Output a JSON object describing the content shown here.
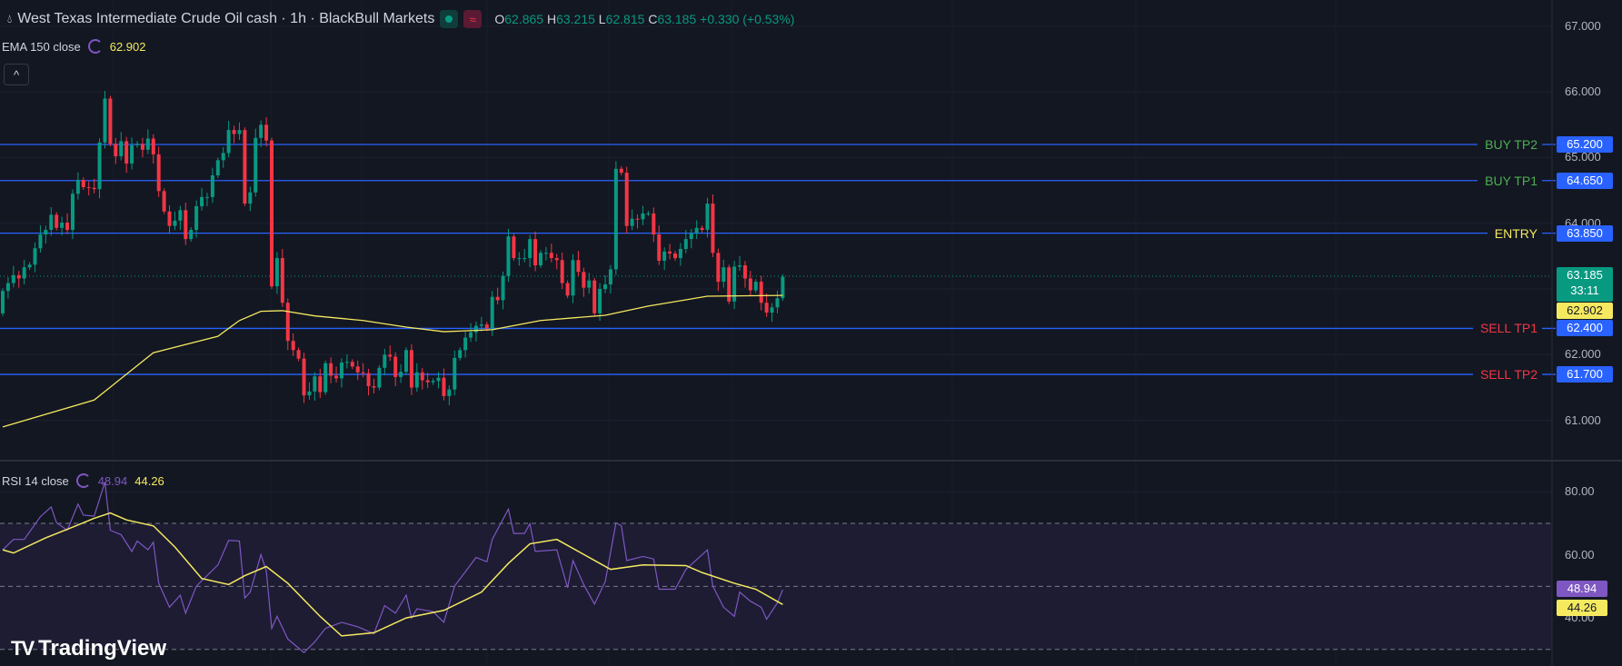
{
  "header": {
    "symbol_title": "West Texas Intermediate Crude Oil cash · 1h · BlackBull Markets",
    "icon": "droplet-icon",
    "ohlc": {
      "o_label": "O",
      "o": "62.865",
      "h_label": "H",
      "h": "63.215",
      "l_label": "L",
      "l": "62.815",
      "c_label": "C",
      "c": "63.185",
      "change": "+0.330 (+0.53%)"
    }
  },
  "ema_legend": {
    "label": "EMA 150 close",
    "value": "62.902"
  },
  "rsi_legend": {
    "label": "RSI 14 close",
    "value": "48.94",
    "ma_value": "44.26"
  },
  "branding": {
    "logo_text": "TradingView"
  },
  "colors": {
    "background": "#131722",
    "up": "#089981",
    "down": "#f23645",
    "ema": "#f5e960",
    "rsi": "#7e57c2",
    "rsi_ma": "#f5e960",
    "level_line": "#2962ff",
    "buy": "#4caf50",
    "sell": "#f23645",
    "entry": "#f5e960"
  },
  "chart_data": [
    {
      "type": "candlestick",
      "timeframe": "1h",
      "ylim": [
        60.6,
        67.3
      ],
      "y_ticks": [
        "67.000",
        "66.000",
        "65.000",
        "64.000",
        "62.000",
        "61.000"
      ],
      "first_open": 62.63,
      "closes": [
        62.97,
        63.09,
        63.21,
        63.16,
        63.33,
        63.37,
        63.62,
        63.83,
        63.9,
        64.13,
        63.93,
        64.01,
        63.9,
        64.45,
        64.66,
        64.55,
        64.54,
        64.52,
        65.23,
        65.9,
        65.21,
        65.02,
        65.25,
        64.91,
        65.19,
        65.21,
        65.12,
        65.29,
        65.05,
        64.49,
        64.18,
        63.96,
        64.04,
        64.2,
        63.76,
        63.9,
        64.26,
        64.4,
        64.4,
        64.73,
        64.96,
        65.07,
        65.42,
        65.36,
        65.42,
        64.3,
        64.47,
        65.3,
        65.5,
        65.26,
        63.04,
        63.47,
        62.79,
        62.21,
        62.07,
        61.94,
        61.38,
        61.44,
        61.67,
        61.43,
        61.87,
        61.68,
        61.64,
        61.88,
        61.89,
        61.82,
        61.73,
        61.72,
        61.52,
        61.5,
        61.8,
        62.0,
        61.97,
        61.66,
        61.74,
        62.07,
        61.5,
        61.73,
        61.61,
        61.58,
        61.6,
        61.65,
        61.37,
        61.47,
        61.95,
        62.07,
        62.26,
        62.34,
        62.44,
        62.46,
        62.4,
        62.88,
        62.83,
        63.2,
        63.8,
        63.47,
        63.47,
        63.47,
        63.76,
        63.36,
        63.55,
        63.55,
        63.47,
        63.44,
        63.09,
        62.9,
        63.44,
        63.26,
        63.02,
        63.13,
        62.63,
        63.0,
        63.07,
        63.3,
        64.83,
        64.77,
        63.96,
        64.07,
        64.06,
        64.15,
        64.15,
        63.83,
        63.43,
        63.57,
        63.54,
        63.47,
        63.61,
        63.76,
        63.85,
        63.93,
        63.9,
        64.3,
        63.55,
        63.11,
        63.33,
        62.81,
        63.34,
        63.36,
        63.16,
        62.98,
        63.11,
        62.79,
        62.64,
        62.72,
        62.86,
        63.185
      ],
      "ema150": [
        [
          0,
          60.9
        ],
        [
          17,
          61.31
        ],
        [
          28,
          62.03
        ],
        [
          40,
          62.28
        ],
        [
          44,
          62.52
        ],
        [
          48,
          62.66
        ],
        [
          52,
          62.67
        ],
        [
          58,
          62.59
        ],
        [
          67,
          62.52
        ],
        [
          75,
          62.42
        ],
        [
          82,
          62.35
        ],
        [
          91,
          62.38
        ],
        [
          100,
          62.52
        ],
        [
          112,
          62.6
        ],
        [
          120,
          62.74
        ],
        [
          131,
          62.89
        ],
        [
          145,
          62.902
        ]
      ],
      "levels": [
        {
          "label": "BUY TP2",
          "price": "65.200",
          "kind": "buy"
        },
        {
          "label": "BUY TP1",
          "price": "64.650",
          "kind": "buy"
        },
        {
          "label": "ENTRY",
          "price": "63.850",
          "kind": "entry"
        },
        {
          "label": "SELL TP1",
          "price": "62.400",
          "kind": "sell"
        },
        {
          "label": "SELL TP2",
          "price": "61.700",
          "kind": "sell"
        }
      ],
      "last_price": {
        "value": "63.185",
        "countdown": "33:11"
      },
      "ema_tag": "62.902"
    },
    {
      "type": "line",
      "indicator": "RSI 14",
      "ylim": [
        27,
        87
      ],
      "y_ticks": [
        "80.00",
        "60.00",
        "40.00"
      ],
      "bands": [
        70,
        50,
        30
      ],
      "rsi": [
        [
          0,
          61.6
        ],
        [
          2,
          64.9
        ],
        [
          4,
          64.9
        ],
        [
          7,
          72.1
        ],
        [
          9,
          75.2
        ],
        [
          10,
          70.2
        ],
        [
          12,
          67.8
        ],
        [
          14,
          76.1
        ],
        [
          15,
          72.6
        ],
        [
          17,
          72.3
        ],
        [
          19,
          83.1
        ],
        [
          20,
          67.8
        ],
        [
          22,
          66.4
        ],
        [
          24,
          61.1
        ],
        [
          25,
          64.4
        ],
        [
          27,
          61.6
        ],
        [
          28,
          64
        ],
        [
          29,
          51
        ],
        [
          31,
          43.4
        ],
        [
          33,
          47.2
        ],
        [
          34,
          41.5
        ],
        [
          36,
          50.1
        ],
        [
          40,
          56.8
        ],
        [
          42,
          64.6
        ],
        [
          44,
          64.4
        ],
        [
          45,
          46.3
        ],
        [
          46,
          48.2
        ],
        [
          48,
          60.1
        ],
        [
          49,
          54.9
        ],
        [
          50,
          36.7
        ],
        [
          51,
          40.5
        ],
        [
          53,
          33.3
        ],
        [
          56,
          29
        ],
        [
          58,
          32.4
        ],
        [
          60,
          36.7
        ],
        [
          63,
          38.6
        ],
        [
          66,
          37.2
        ],
        [
          69,
          35
        ],
        [
          71,
          43.9
        ],
        [
          73,
          41.5
        ],
        [
          75,
          47.2
        ],
        [
          76,
          40
        ],
        [
          77,
          42.9
        ],
        [
          80,
          42
        ],
        [
          82,
          38.6
        ],
        [
          84,
          50.1
        ],
        [
          88,
          59.2
        ],
        [
          90,
          57.8
        ],
        [
          91,
          64.9
        ],
        [
          94,
          74.5
        ],
        [
          95,
          66.8
        ],
        [
          97,
          66.8
        ],
        [
          98,
          69.9
        ],
        [
          99,
          61.1
        ],
        [
          103,
          61.6
        ],
        [
          105,
          49.6
        ],
        [
          106,
          58.2
        ],
        [
          108,
          50.6
        ],
        [
          110,
          44.4
        ],
        [
          112,
          51.5
        ],
        [
          114,
          70.2
        ],
        [
          115,
          69.2
        ],
        [
          116,
          58.2
        ],
        [
          119,
          59.5
        ],
        [
          121,
          58.7
        ],
        [
          122,
          49.1
        ],
        [
          125,
          49.1
        ],
        [
          127,
          55.4
        ],
        [
          131,
          61.6
        ],
        [
          132,
          50.1
        ],
        [
          134,
          43.4
        ],
        [
          136,
          40.5
        ],
        [
          137,
          48.2
        ],
        [
          139,
          45.3
        ],
        [
          141,
          43.4
        ],
        [
          142,
          39.6
        ],
        [
          144,
          44.8
        ],
        [
          145,
          48.94
        ]
      ],
      "rsi_ma": [
        [
          0,
          61.6
        ],
        [
          2,
          60.6
        ],
        [
          8,
          65.4
        ],
        [
          13,
          68.8
        ],
        [
          17,
          71.6
        ],
        [
          20,
          73.3
        ],
        [
          23,
          71.1
        ],
        [
          28,
          69.2
        ],
        [
          32,
          62.5
        ],
        [
          37,
          52.5
        ],
        [
          42,
          50.6
        ],
        [
          45,
          53.4
        ],
        [
          49,
          56.3
        ],
        [
          53,
          51
        ],
        [
          59,
          40.5
        ],
        [
          63,
          34.3
        ],
        [
          69,
          35.3
        ],
        [
          75,
          40
        ],
        [
          82,
          42.4
        ],
        [
          89,
          48.2
        ],
        [
          94,
          57.3
        ],
        [
          98,
          63.5
        ],
        [
          103,
          64.9
        ],
        [
          107,
          61.1
        ],
        [
          113,
          55.4
        ],
        [
          119,
          56.8
        ],
        [
          127,
          56.6
        ],
        [
          130,
          54.4
        ],
        [
          136,
          51
        ],
        [
          140,
          49.1
        ],
        [
          145,
          44.26
        ]
      ],
      "last_rsi": "48.94",
      "last_ma": "44.26"
    }
  ]
}
